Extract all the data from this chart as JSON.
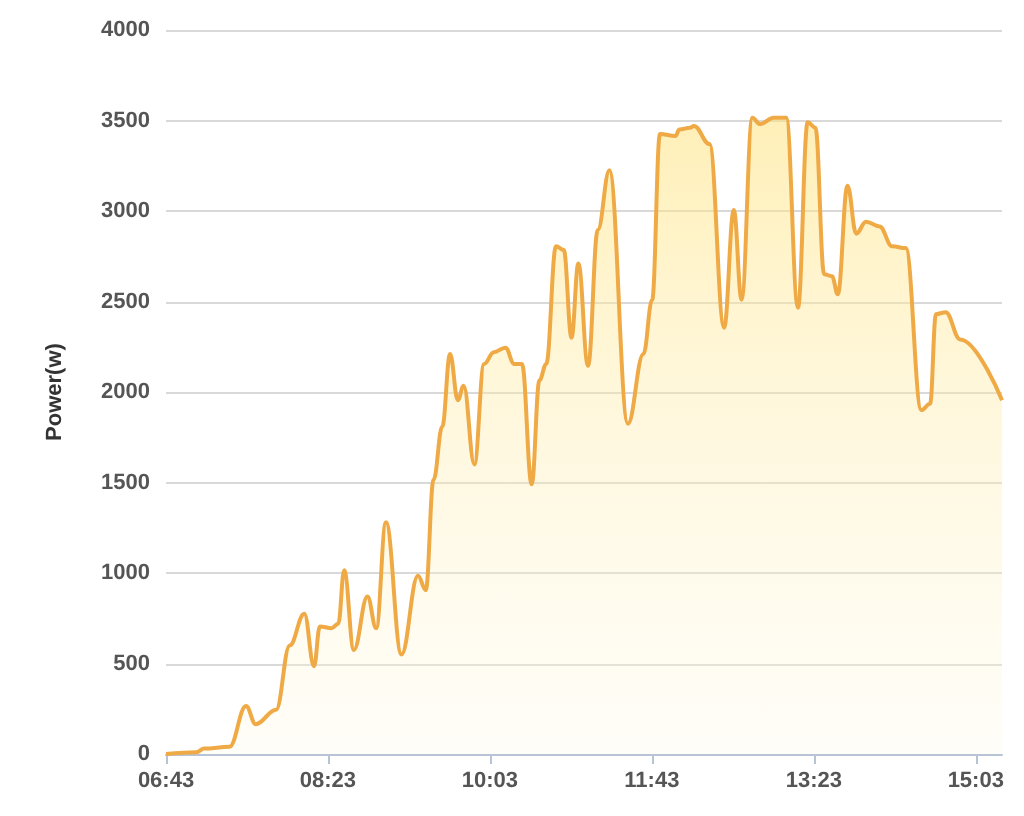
{
  "chart_data": {
    "type": "area",
    "ylabel": "Power(w)",
    "x": [
      6.7167,
      7.03,
      7.11,
      7.37,
      7.54,
      7.64,
      7.85,
      7.99,
      8.14,
      8.24,
      8.3,
      8.42,
      8.49,
      8.55,
      8.65,
      8.79,
      8.88,
      8.98,
      9.14,
      9.31,
      9.39,
      9.47,
      9.56,
      9.64,
      9.72,
      9.78,
      9.89,
      9.99,
      10.09,
      10.21,
      10.3,
      10.38,
      10.48,
      10.56,
      10.63,
      10.73,
      10.81,
      10.89,
      10.96,
      11.06,
      11.16,
      11.28,
      11.47,
      11.63,
      11.72,
      11.8,
      11.96,
      12.0,
      12.11,
      12.15,
      12.31,
      12.46,
      12.56,
      12.64,
      12.75,
      12.83,
      12.97,
      13.1,
      13.22,
      13.32,
      13.4,
      13.49,
      13.57,
      13.63,
      13.73,
      13.82,
      13.92,
      14.06,
      14.19,
      14.33,
      14.49,
      14.58,
      14.64,
      14.74,
      14.89,
      15.32
    ],
    "series": [
      {
        "color": "#efaa45",
        "values": [
          0,
          10,
          30,
          40,
          265,
          165,
          245,
          600,
          775,
          485,
          705,
          695,
          720,
          1015,
          575,
          870,
          695,
          1280,
          550,
          985,
          905,
          1515,
          1810,
          2210,
          1955,
          2035,
          1600,
          2155,
          2220,
          2245,
          2155,
          2155,
          1490,
          2065,
          2155,
          2805,
          2785,
          2300,
          2710,
          2145,
          2895,
          3225,
          1825,
          2210,
          2510,
          3425,
          3415,
          3450,
          3460,
          3470,
          3370,
          2355,
          3005,
          2510,
          3515,
          3480,
          3515,
          3515,
          2465,
          3490,
          3460,
          2650,
          2640,
          2540,
          3140,
          2875,
          2940,
          2915,
          2805,
          2795,
          1900,
          1935,
          2430,
          2440,
          2290,
          1955
        ]
      }
    ],
    "xlim": [
      6.7167,
      15.32
    ],
    "xticks": [
      {
        "value": 6.7167,
        "label": "06:43"
      },
      {
        "value": 8.3833,
        "label": "08:23"
      },
      {
        "value": 10.05,
        "label": "10:03"
      },
      {
        "value": 11.7167,
        "label": "11:43"
      },
      {
        "value": 13.3833,
        "label": "13:23"
      },
      {
        "value": 15.05,
        "label": "15:03"
      }
    ],
    "ylim": [
      0,
      4000
    ],
    "yticks": [
      0,
      500,
      1000,
      1500,
      2000,
      2500,
      3000,
      3500,
      4000
    ],
    "grid": "y",
    "marker": "none",
    "line_style": "solid"
  }
}
